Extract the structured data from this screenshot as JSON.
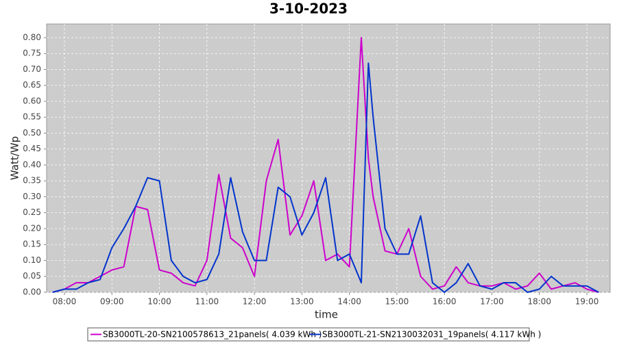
{
  "chart_data": {
    "type": "line",
    "title": "3-10-2023",
    "x_label": "time",
    "y_label": "Watt/Wp",
    "x": [
      7.75,
      8.0,
      8.25,
      8.5,
      8.75,
      9.0,
      9.25,
      9.5,
      9.75,
      10.0,
      10.25,
      10.5,
      10.75,
      11.0,
      11.25,
      11.5,
      11.75,
      12.0,
      12.25,
      12.5,
      12.75,
      13.0,
      13.25,
      13.5,
      13.75,
      14.0,
      14.25,
      14.4,
      14.5,
      14.75,
      15.0,
      15.25,
      15.5,
      15.75,
      16.0,
      16.25,
      16.5,
      16.75,
      17.0,
      17.25,
      17.5,
      17.75,
      18.0,
      18.25,
      18.5,
      18.75,
      19.0,
      19.25
    ],
    "series": [
      {
        "name": "SB3000TL-20-SN2100578613_21panels( 4.039 kWh )",
        "color": "#cc00cc",
        "values": [
          0,
          0.01,
          0.03,
          0.03,
          0.05,
          0.07,
          0.08,
          0.27,
          0.26,
          0.07,
          0.06,
          0.03,
          0.02,
          0.1,
          0.37,
          0.17,
          0.14,
          0.05,
          0.35,
          0.48,
          0.18,
          0.24,
          0.35,
          0.1,
          0.12,
          0.08,
          0.8,
          0.42,
          0.3,
          0.13,
          0.12,
          0.2,
          0.05,
          0.01,
          0.02,
          0.08,
          0.03,
          0.02,
          0.02,
          0.03,
          0.01,
          0.02,
          0.06,
          0.01,
          0.02,
          0.03,
          0.01,
          0
        ]
      },
      {
        "name": "SB3000TL-21-SN2130032031_19panels( 4.117 kWh )",
        "color": "#0033cc",
        "values": [
          0,
          0.01,
          0.01,
          0.03,
          0.04,
          0.14,
          0.2,
          0.27,
          0.36,
          0.35,
          0.1,
          0.05,
          0.03,
          0.04,
          0.12,
          0.36,
          0.19,
          0.1,
          0.1,
          0.33,
          0.3,
          0.18,
          0.25,
          0.36,
          0.1,
          0.12,
          0.03,
          0.72,
          0.55,
          0.2,
          0.12,
          0.12,
          0.24,
          0.03,
          0,
          0.03,
          0.09,
          0.02,
          0.01,
          0.03,
          0.03,
          0,
          0.01,
          0.05,
          0.02,
          0.02,
          0.02,
          0
        ]
      }
    ],
    "xlim": [
      7.625,
      19.49
    ],
    "xticks": [
      {
        "value": 8,
        "label": "08:00"
      },
      {
        "value": 9,
        "label": "09:00"
      },
      {
        "value": 10,
        "label": "10:00"
      },
      {
        "value": 11,
        "label": "11:00"
      },
      {
        "value": 12,
        "label": "12:00"
      },
      {
        "value": 13,
        "label": "13:00"
      },
      {
        "value": 14,
        "label": "14:00"
      },
      {
        "value": 15,
        "label": "15:00"
      },
      {
        "value": 16,
        "label": "16:00"
      },
      {
        "value": 17,
        "label": "17:00"
      },
      {
        "value": 18,
        "label": "18:00"
      },
      {
        "value": 19,
        "label": "19:00"
      }
    ],
    "ylim": [
      0,
      0.843
    ],
    "yticks": [
      {
        "value": 0,
        "label": "0.00"
      },
      {
        "value": 0.05,
        "label": "0.05"
      },
      {
        "value": 0.1,
        "label": "0.10"
      },
      {
        "value": 0.15,
        "label": "0.15"
      },
      {
        "value": 0.2,
        "label": "0.20"
      },
      {
        "value": 0.25,
        "label": "0.25"
      },
      {
        "value": 0.3,
        "label": "0.30"
      },
      {
        "value": 0.35,
        "label": "0.35"
      },
      {
        "value": 0.4,
        "label": "0.40"
      },
      {
        "value": 0.45,
        "label": "0.45"
      },
      {
        "value": 0.5,
        "label": "0.50"
      },
      {
        "value": 0.55,
        "label": "0.55"
      },
      {
        "value": 0.6,
        "label": "0.60"
      },
      {
        "value": 0.65,
        "label": "0.65"
      },
      {
        "value": 0.7,
        "label": "0.70"
      },
      {
        "value": 0.75,
        "label": "0.75"
      },
      {
        "value": 0.8,
        "label": "0.80"
      }
    ],
    "grid": true
  }
}
